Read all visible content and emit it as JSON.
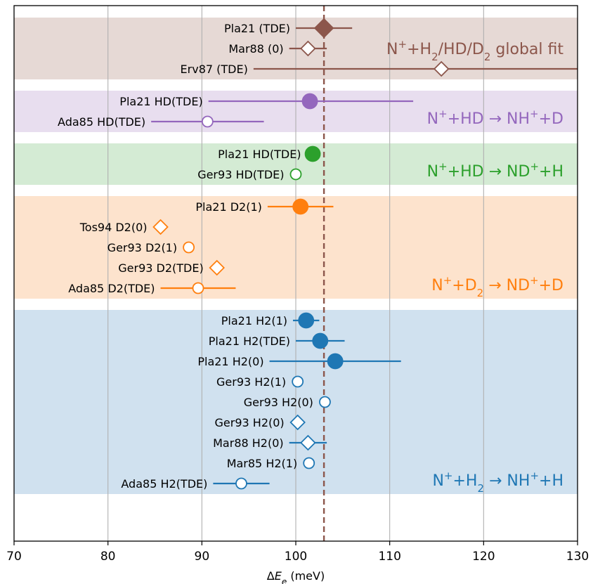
{
  "chart_data": {
    "type": "scatter",
    "xlabel": "ΔE_e (meV)",
    "xlim": [
      70,
      130
    ],
    "xticks": [
      70,
      80,
      90,
      100,
      110,
      120,
      130
    ],
    "grid": "vertical",
    "reference_line": {
      "x": 103.0,
      "style": "dashed",
      "color": "#8c564b"
    },
    "groups": [
      {
        "label_parts": [
          [
            "N",
            ""
          ],
          [
            "+",
            "sup"
          ],
          [
            "+H",
            ""
          ],
          [
            "2",
            "sub"
          ],
          [
            "/HD/D",
            ""
          ],
          [
            "2",
            "sub"
          ],
          [
            " global fit",
            ""
          ]
        ],
        "color": "#8c564b",
        "band": "#e6d9d5",
        "points": [
          {
            "label": "Pla21 (TDE)",
            "x": 103.0,
            "xerr": [
              100.0,
              106.0
            ],
            "marker": "diamond",
            "filled": true
          },
          {
            "label": "Mar88 (0)",
            "x": 101.3,
            "xerr": [
              99.3,
              103.3
            ],
            "marker": "diamond",
            "filled": false
          },
          {
            "label": "Erv87 (TDE)",
            "x": 115.5,
            "xerr": [
              95.5,
              130.0
            ],
            "marker": "diamond",
            "filled": false
          }
        ]
      },
      {
        "label_parts": [
          [
            "N",
            ""
          ],
          [
            "+",
            "sup"
          ],
          [
            "+HD → NH",
            ""
          ],
          [
            "+",
            "sup"
          ],
          [
            "+D",
            ""
          ]
        ],
        "color": "#9467bd",
        "band": "#e8deef",
        "points": [
          {
            "label": "Pla21 HD(TDE)",
            "x": 101.5,
            "xerr": [
              90.7,
              112.5
            ],
            "marker": "circle",
            "filled": true
          },
          {
            "label": "Ada85 HD(TDE)",
            "x": 90.6,
            "xerr": [
              84.6,
              96.6
            ],
            "marker": "circle",
            "filled": false
          }
        ]
      },
      {
        "label_parts": [
          [
            "N",
            ""
          ],
          [
            "+",
            "sup"
          ],
          [
            "+HD → ND",
            ""
          ],
          [
            "+",
            "sup"
          ],
          [
            "+H",
            ""
          ]
        ],
        "color": "#2ca02c",
        "band": "#d4ebd4",
        "points": [
          {
            "label": "Pla21 HD(TDE)",
            "x": 101.8,
            "xerr": null,
            "marker": "circle",
            "filled": true
          },
          {
            "label": "Ger93 HD(TDE)",
            "x": 100.0,
            "xerr": null,
            "marker": "circle",
            "filled": false
          }
        ]
      },
      {
        "label_parts": [
          [
            "N",
            ""
          ],
          [
            "+",
            "sup"
          ],
          [
            "+D",
            ""
          ],
          [
            "2",
            "sub"
          ],
          [
            " → ND",
            ""
          ],
          [
            "+",
            "sup"
          ],
          [
            "+D",
            ""
          ]
        ],
        "color": "#ff7f0e",
        "band": "#fde3cd",
        "points": [
          {
            "label": "Pla21 D2(1)",
            "x": 100.5,
            "xerr": [
              97.0,
              104.0
            ],
            "marker": "circle",
            "filled": true
          },
          {
            "label": "Tos94 D2(0)",
            "x": 85.6,
            "xerr": null,
            "marker": "diamond",
            "filled": false
          },
          {
            "label": "Ger93 D2(1)",
            "x": 88.6,
            "xerr": null,
            "marker": "circle",
            "filled": false
          },
          {
            "label": "Ger93 D2(TDE)",
            "x": 91.6,
            "xerr": null,
            "marker": "diamond",
            "filled": false
          },
          {
            "label": "Ada85 D2(TDE)",
            "x": 89.6,
            "xerr": [
              85.6,
              93.6
            ],
            "marker": "circle",
            "filled": false
          }
        ]
      },
      {
        "label_parts": [
          [
            "N",
            ""
          ],
          [
            "+",
            "sup"
          ],
          [
            "+H",
            ""
          ],
          [
            "2",
            "sub"
          ],
          [
            " → NH",
            ""
          ],
          [
            "+",
            "sup"
          ],
          [
            "+H",
            ""
          ]
        ],
        "color": "#1f77b4",
        "band": "#d0e1ef",
        "points": [
          {
            "label": "Pla21 H2(1)",
            "x": 101.1,
            "xerr": [
              99.7,
              102.5
            ],
            "marker": "circle",
            "filled": true
          },
          {
            "label": "Pla21 H2(TDE)",
            "x": 102.6,
            "xerr": [
              100.0,
              105.2
            ],
            "marker": "circle",
            "filled": true
          },
          {
            "label": "Pla21 H2(0)",
            "x": 104.2,
            "xerr": [
              97.2,
              111.2
            ],
            "marker": "circle",
            "filled": true
          },
          {
            "label": "Ger93 H2(1)",
            "x": 100.2,
            "xerr": null,
            "marker": "circle",
            "filled": false
          },
          {
            "label": "Ger93 H2(0)",
            "x": 103.1,
            "xerr": null,
            "marker": "circle",
            "filled": false
          },
          {
            "label": "Ger93 H2(0)",
            "x": 100.2,
            "xerr": null,
            "marker": "diamond",
            "filled": false
          },
          {
            "label": "Mar88 H2(0)",
            "x": 101.3,
            "xerr": [
              99.3,
              103.3
            ],
            "marker": "diamond",
            "filled": false
          },
          {
            "label": "Mar85 H2(1)",
            "x": 101.4,
            "xerr": null,
            "marker": "circle",
            "filled": false
          },
          {
            "label": "Ada85 H2(TDE)",
            "x": 94.2,
            "xerr": [
              91.2,
              97.2
            ],
            "marker": "circle",
            "filled": false
          }
        ]
      }
    ]
  }
}
